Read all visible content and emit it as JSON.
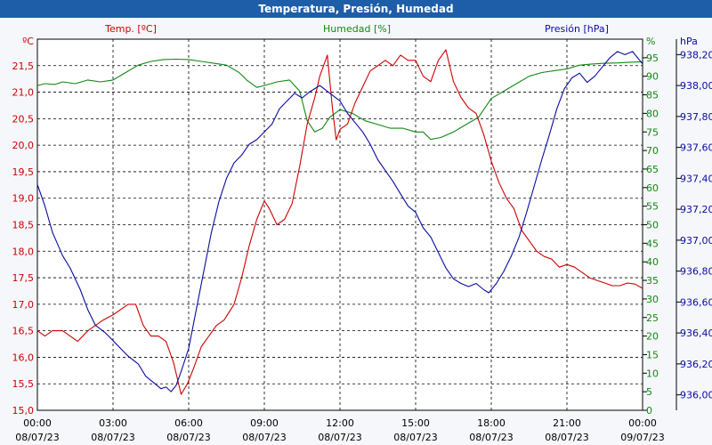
{
  "chart_data": {
    "type": "line",
    "title": "Temperatura, Presión, Humedad",
    "series_labels": {
      "temp": "Temp. [ºC]",
      "hum": "Humedad [%]",
      "pres": "Presión [hPa]"
    },
    "units": {
      "temp": "ºC",
      "hum": "%",
      "pres": "hPa"
    },
    "colors": {
      "temp": "#cc0000",
      "hum": "#118811",
      "pres": "#0a0aa0",
      "title_bar": "#1e5ea8"
    },
    "x_range_hours": [
      0,
      24
    ],
    "x_ticks": [
      {
        "time": "00:00",
        "date": "08/07/23"
      },
      {
        "time": "03:00",
        "date": "08/07/23"
      },
      {
        "time": "06:00",
        "date": "08/07/23"
      },
      {
        "time": "09:00",
        "date": "08/07/23"
      },
      {
        "time": "12:00",
        "date": "08/07/23"
      },
      {
        "time": "15:00",
        "date": "08/07/23"
      },
      {
        "time": "18:00",
        "date": "08/07/23"
      },
      {
        "time": "21:00",
        "date": "08/07/23"
      },
      {
        "time": "00:00",
        "date": "09/07/23"
      }
    ],
    "temp_axis": {
      "range": [
        15.0,
        22.0
      ],
      "ticks": [
        "15,0",
        "15,5",
        "16,0",
        "16,5",
        "17,0",
        "17,5",
        "18,0",
        "18,5",
        "19,0",
        "19,5",
        "20,0",
        "20,5",
        "21,0",
        "21,5"
      ]
    },
    "hum_axis": {
      "range": [
        0,
        100
      ],
      "ticks": [
        "0",
        "5",
        "10",
        "15",
        "20",
        "25",
        "30",
        "35",
        "40",
        "45",
        "50",
        "55",
        "60",
        "65",
        "70",
        "75",
        "80",
        "85",
        "90",
        "95"
      ]
    },
    "pres_axis": {
      "range": [
        935.9,
        938.3
      ],
      "ticks": [
        "936,00",
        "936,20",
        "936,40",
        "936,60",
        "936,80",
        "937,00",
        "937,20",
        "937,40",
        "937,60",
        "937,80",
        "938,00",
        "938,20"
      ]
    },
    "grid": true,
    "temp": [
      [
        0,
        16.5
      ],
      [
        0.3,
        16.4
      ],
      [
        0.6,
        16.5
      ],
      [
        1,
        16.5
      ],
      [
        1.3,
        16.4
      ],
      [
        1.6,
        16.3
      ],
      [
        2,
        16.5
      ],
      [
        2.3,
        16.6
      ],
      [
        2.6,
        16.7
      ],
      [
        3,
        16.8
      ],
      [
        3.3,
        16.9
      ],
      [
        3.6,
        17.0
      ],
      [
        3.9,
        17.0
      ],
      [
        4.2,
        16.6
      ],
      [
        4.5,
        16.4
      ],
      [
        4.8,
        16.4
      ],
      [
        5.1,
        16.3
      ],
      [
        5.4,
        15.9
      ],
      [
        5.7,
        15.3
      ],
      [
        5.95,
        15.5
      ],
      [
        6.2,
        15.8
      ],
      [
        6.5,
        16.2
      ],
      [
        6.8,
        16.4
      ],
      [
        7.1,
        16.6
      ],
      [
        7.4,
        16.7
      ],
      [
        7.8,
        17.0
      ],
      [
        8.1,
        17.5
      ],
      [
        8.4,
        18.1
      ],
      [
        8.7,
        18.6
      ],
      [
        9.0,
        18.95
      ],
      [
        9.2,
        18.8
      ],
      [
        9.5,
        18.5
      ],
      [
        9.8,
        18.6
      ],
      [
        10.1,
        18.9
      ],
      [
        10.4,
        19.6
      ],
      [
        10.7,
        20.4
      ],
      [
        11.0,
        20.9
      ],
      [
        11.2,
        21.3
      ],
      [
        11.5,
        21.7
      ],
      [
        11.7,
        20.7
      ],
      [
        11.85,
        20.1
      ],
      [
        12.0,
        20.3
      ],
      [
        12.3,
        20.4
      ],
      [
        12.6,
        20.8
      ],
      [
        12.9,
        21.1
      ],
      [
        13.2,
        21.4
      ],
      [
        13.5,
        21.5
      ],
      [
        13.8,
        21.6
      ],
      [
        14.1,
        21.5
      ],
      [
        14.4,
        21.7
      ],
      [
        14.7,
        21.6
      ],
      [
        15.0,
        21.6
      ],
      [
        15.3,
        21.3
      ],
      [
        15.6,
        21.2
      ],
      [
        15.9,
        21.6
      ],
      [
        16.2,
        21.8
      ],
      [
        16.5,
        21.2
      ],
      [
        16.8,
        20.9
      ],
      [
        17.1,
        20.7
      ],
      [
        17.4,
        20.6
      ],
      [
        17.7,
        20.2
      ],
      [
        18.0,
        19.7
      ],
      [
        18.3,
        19.3
      ],
      [
        18.6,
        19.0
      ],
      [
        18.9,
        18.8
      ],
      [
        19.2,
        18.4
      ],
      [
        19.5,
        18.2
      ],
      [
        19.8,
        18.0
      ],
      [
        20.1,
        17.9
      ],
      [
        20.4,
        17.85
      ],
      [
        20.7,
        17.7
      ],
      [
        21.0,
        17.75
      ],
      [
        21.3,
        17.7
      ],
      [
        21.6,
        17.6
      ],
      [
        21.9,
        17.5
      ],
      [
        22.2,
        17.45
      ],
      [
        22.5,
        17.4
      ],
      [
        22.8,
        17.35
      ],
      [
        23.1,
        17.35
      ],
      [
        23.4,
        17.4
      ],
      [
        23.7,
        17.38
      ],
      [
        24.0,
        17.3
      ]
    ],
    "hum": [
      [
        0,
        87.5
      ],
      [
        0.3,
        88
      ],
      [
        0.7,
        87.8
      ],
      [
        1,
        88.5
      ],
      [
        1.5,
        88
      ],
      [
        2,
        89
      ],
      [
        2.5,
        88.5
      ],
      [
        3,
        89
      ],
      [
        3.5,
        91
      ],
      [
        4,
        93
      ],
      [
        4.5,
        94
      ],
      [
        5,
        94.5
      ],
      [
        5.5,
        94.6
      ],
      [
        6,
        94.5
      ],
      [
        6.5,
        94
      ],
      [
        7,
        93.5
      ],
      [
        7.5,
        93
      ],
      [
        8,
        91
      ],
      [
        8.3,
        89
      ],
      [
        8.7,
        87
      ],
      [
        9,
        87.5
      ],
      [
        9.5,
        88.5
      ],
      [
        10,
        89
      ],
      [
        10.4,
        86
      ],
      [
        10.7,
        78
      ],
      [
        11,
        75
      ],
      [
        11.3,
        76
      ],
      [
        11.6,
        79
      ],
      [
        12,
        81
      ],
      [
        12.5,
        80
      ],
      [
        13,
        78
      ],
      [
        13.5,
        77
      ],
      [
        14,
        76
      ],
      [
        14.5,
        76
      ],
      [
        15,
        75
      ],
      [
        15.3,
        75
      ],
      [
        15.6,
        73
      ],
      [
        16,
        73.5
      ],
      [
        16.5,
        75
      ],
      [
        17,
        77
      ],
      [
        17.5,
        79
      ],
      [
        18,
        84
      ],
      [
        18.5,
        86
      ],
      [
        19,
        88
      ],
      [
        19.5,
        90
      ],
      [
        20,
        91
      ],
      [
        20.5,
        91.5
      ],
      [
        21,
        92
      ],
      [
        21.5,
        93
      ],
      [
        22,
        93.3
      ],
      [
        22.5,
        93.5
      ],
      [
        23,
        93.6
      ],
      [
        23.5,
        93.8
      ],
      [
        24,
        93.9
      ]
    ],
    "pres": [
      [
        0,
        937.36
      ],
      [
        0.3,
        937.22
      ],
      [
        0.6,
        937.05
      ],
      [
        1,
        936.9
      ],
      [
        1.3,
        936.82
      ],
      [
        1.7,
        936.68
      ],
      [
        2,
        936.55
      ],
      [
        2.3,
        936.45
      ],
      [
        2.7,
        936.4
      ],
      [
        3,
        936.35
      ],
      [
        3.3,
        936.3
      ],
      [
        3.6,
        936.25
      ],
      [
        4,
        936.2
      ],
      [
        4.3,
        936.12
      ],
      [
        4.6,
        936.08
      ],
      [
        4.9,
        936.04
      ],
      [
        5.1,
        936.05
      ],
      [
        5.3,
        936.02
      ],
      [
        5.5,
        936.06
      ],
      [
        5.7,
        936.15
      ],
      [
        6,
        936.3
      ],
      [
        6.3,
        936.55
      ],
      [
        6.6,
        936.8
      ],
      [
        6.9,
        937.05
      ],
      [
        7.2,
        937.25
      ],
      [
        7.5,
        937.4
      ],
      [
        7.8,
        937.5
      ],
      [
        8.1,
        937.55
      ],
      [
        8.4,
        937.62
      ],
      [
        8.7,
        937.65
      ],
      [
        9,
        937.7
      ],
      [
        9.3,
        937.75
      ],
      [
        9.6,
        937.85
      ],
      [
        9.9,
        937.9
      ],
      [
        10.2,
        937.95
      ],
      [
        10.5,
        937.92
      ],
      [
        10.8,
        937.96
      ],
      [
        11.2,
        938.0
      ],
      [
        11.6,
        937.95
      ],
      [
        12,
        937.9
      ],
      [
        12.3,
        937.82
      ],
      [
        12.6,
        937.76
      ],
      [
        12.9,
        937.7
      ],
      [
        13.2,
        937.62
      ],
      [
        13.5,
        937.52
      ],
      [
        13.8,
        937.45
      ],
      [
        14.1,
        937.38
      ],
      [
        14.4,
        937.3
      ],
      [
        14.7,
        937.22
      ],
      [
        15,
        937.18
      ],
      [
        15.3,
        937.08
      ],
      [
        15.6,
        937.02
      ],
      [
        15.9,
        936.92
      ],
      [
        16.2,
        936.82
      ],
      [
        16.5,
        936.75
      ],
      [
        16.8,
        936.72
      ],
      [
        17.1,
        936.7
      ],
      [
        17.4,
        936.72
      ],
      [
        17.7,
        936.68
      ],
      [
        17.9,
        936.66
      ],
      [
        18.2,
        936.72
      ],
      [
        18.5,
        936.8
      ],
      [
        18.8,
        936.9
      ],
      [
        19.1,
        937.02
      ],
      [
        19.4,
        937.18
      ],
      [
        19.7,
        937.35
      ],
      [
        20,
        937.52
      ],
      [
        20.3,
        937.68
      ],
      [
        20.6,
        937.85
      ],
      [
        20.9,
        937.98
      ],
      [
        21.2,
        938.05
      ],
      [
        21.5,
        938.08
      ],
      [
        21.8,
        938.02
      ],
      [
        22.1,
        938.06
      ],
      [
        22.4,
        938.12
      ],
      [
        22.7,
        938.18
      ],
      [
        23.0,
        938.22
      ],
      [
        23.3,
        938.2
      ],
      [
        23.6,
        938.22
      ],
      [
        24.0,
        938.14
      ]
    ]
  }
}
